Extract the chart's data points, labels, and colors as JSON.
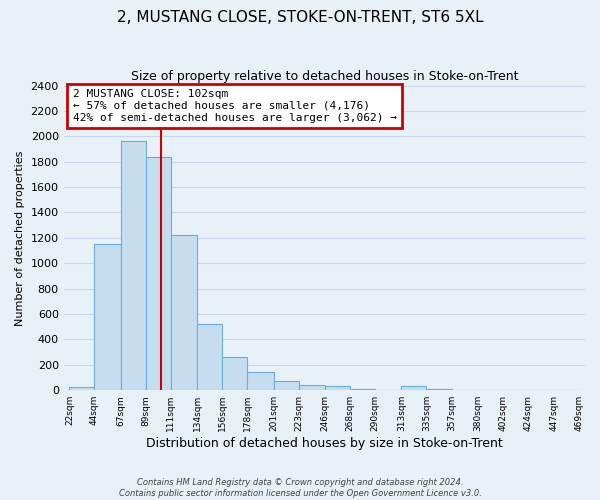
{
  "title": "2, MUSTANG CLOSE, STOKE-ON-TRENT, ST6 5XL",
  "subtitle": "Size of property relative to detached houses in Stoke-on-Trent",
  "xlabel": "Distribution of detached houses by size in Stoke-on-Trent",
  "ylabel": "Number of detached properties",
  "bin_edges": [
    22,
    44,
    67,
    89,
    111,
    134,
    156,
    178,
    201,
    223,
    246,
    268,
    290,
    313,
    335,
    357,
    380,
    402,
    424,
    447,
    469
  ],
  "bar_heights": [
    25,
    1150,
    1960,
    1840,
    1220,
    520,
    265,
    145,
    75,
    40,
    35,
    10,
    5,
    30,
    8,
    5,
    5,
    5,
    5,
    5
  ],
  "tick_labels": [
    "22sqm",
    "44sqm",
    "67sqm",
    "89sqm",
    "111sqm",
    "134sqm",
    "156sqm",
    "178sqm",
    "201sqm",
    "223sqm",
    "246sqm",
    "268sqm",
    "290sqm",
    "313sqm",
    "335sqm",
    "357sqm",
    "380sqm",
    "402sqm",
    "424sqm",
    "447sqm",
    "469sqm"
  ],
  "bar_color": "#c6ddf0",
  "bar_edge_color": "#6aaed6",
  "grid_color": "#c8d8ea",
  "background_color": "#e8f0f8",
  "plot_background": "#e8f0f8",
  "property_line_x": 102,
  "property_line_color": "#cc0000",
  "annotation_text": "2 MUSTANG CLOSE: 102sqm\n← 57% of detached houses are smaller (4,176)\n42% of semi-detached houses are larger (3,062) →",
  "annotation_box_facecolor": "#ffffff",
  "annotation_box_edgecolor": "#cc0000",
  "ylim": [
    0,
    2400
  ],
  "yticks": [
    0,
    200,
    400,
    600,
    800,
    1000,
    1200,
    1400,
    1600,
    1800,
    2000,
    2200,
    2400
  ],
  "footer_line1": "Contains HM Land Registry data © Crown copyright and database right 2024.",
  "footer_line2": "Contains public sector information licensed under the Open Government Licence v3.0."
}
